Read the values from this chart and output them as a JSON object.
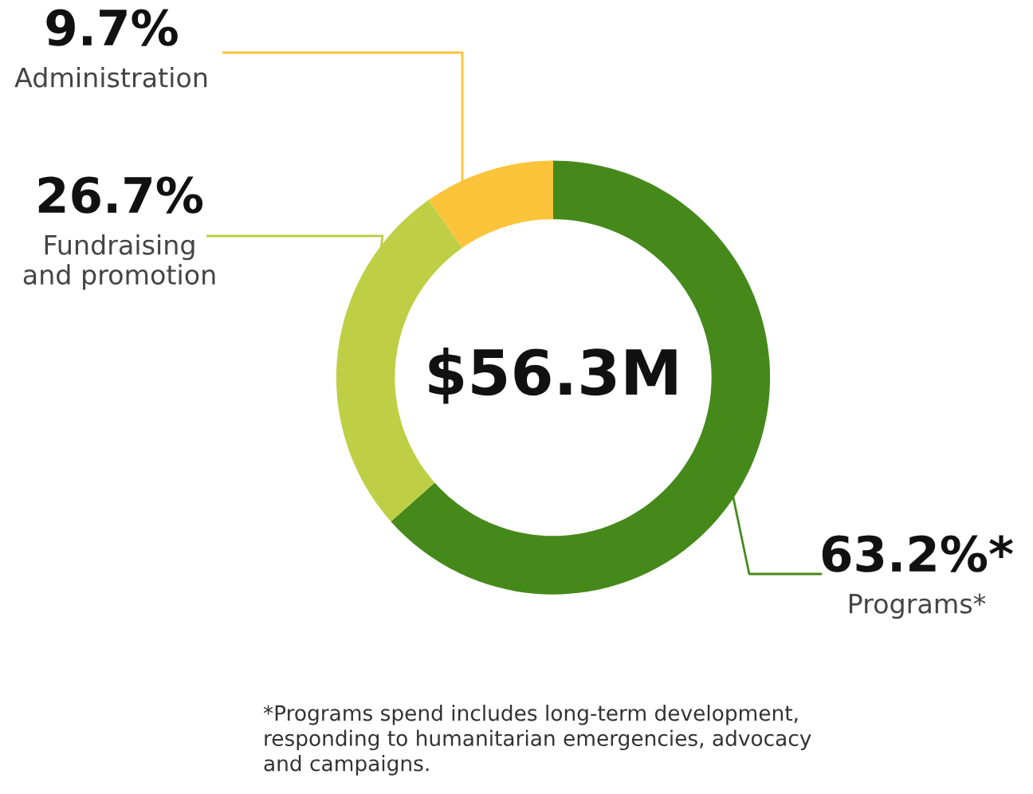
{
  "chart_data": {
    "type": "donut",
    "categories": [
      "Programs*",
      "Fundraising\nand promotion",
      "Administration"
    ],
    "values": [
      63.2,
      26.7,
      9.7
    ],
    "value_labels": [
      "63.2%*",
      "26.7%",
      "9.7%"
    ],
    "colors": [
      "#46891b",
      "#bfcf45",
      "#fbc43a"
    ],
    "annotations": [
      "$56.3M",
      "*Programs spend includes long-term development,\nresponding to humanitarian emergencies, advocacy\nand campaigns."
    ]
  }
}
